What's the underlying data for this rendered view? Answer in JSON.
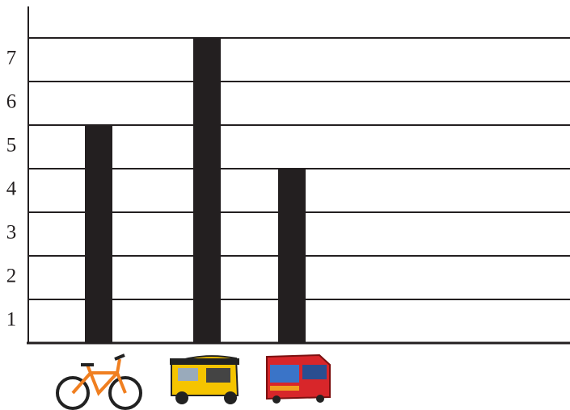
{
  "chart_data": {
    "type": "bar",
    "categories": [
      null,
      null,
      null
    ],
    "values": [
      5,
      7,
      4
    ],
    "color": "#231f20",
    "ylim": [
      0,
      7
    ],
    "yticks": [
      1,
      2,
      3,
      4,
      5,
      6,
      7
    ],
    "grid": true
  }
}
